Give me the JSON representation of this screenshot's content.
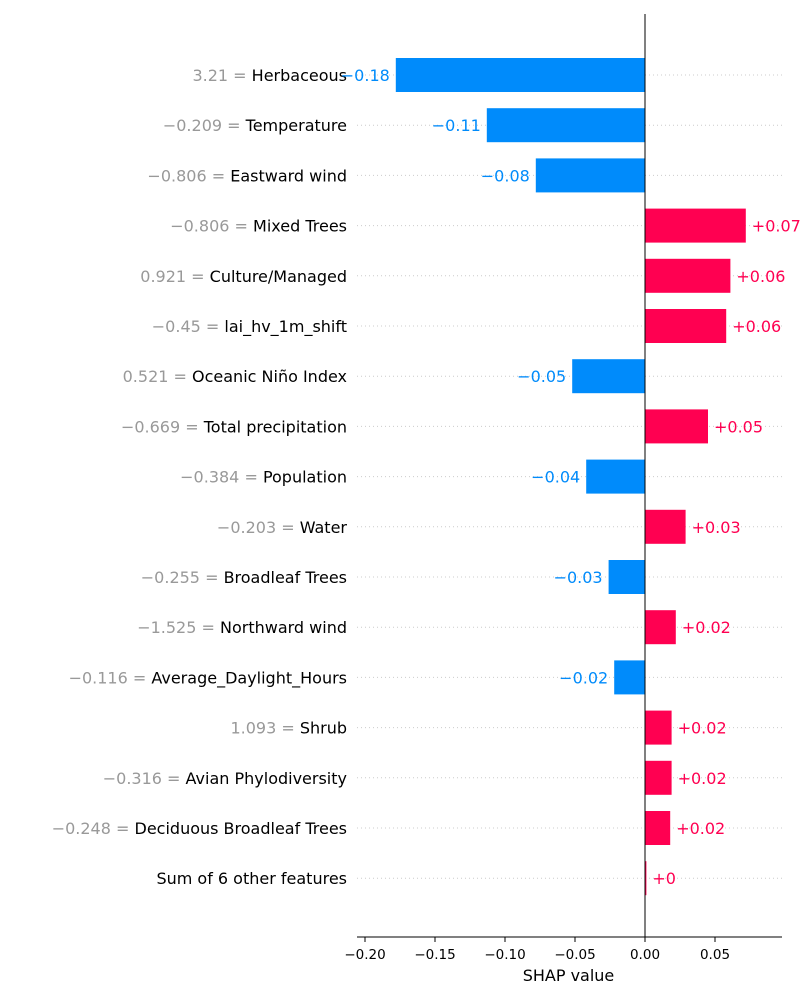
{
  "chart_data": {
    "type": "bar",
    "orientation": "horizontal",
    "xlabel": "SHAP value",
    "xlim": [
      -0.2,
      0.1
    ],
    "xticks": [
      -0.2,
      -0.15,
      -0.1,
      -0.05,
      0.0,
      0.05
    ],
    "xtick_labels": [
      "−0.20",
      "−0.15",
      "−0.10",
      "−0.05",
      "0.00",
      "0.05"
    ],
    "grid": "horizontal dotted row guides",
    "colors": {
      "positive": "#ff0051",
      "negative": "#008bfb",
      "feature_value": "#999999",
      "feature_name": "#000000"
    },
    "features": [
      {
        "value_label": "3.21 = ",
        "name": "Herbaceous",
        "shap": -0.178,
        "shap_label": "−0.18"
      },
      {
        "value_label": "−0.209 = ",
        "name": "Temperature",
        "shap": -0.113,
        "shap_label": "−0.11"
      },
      {
        "value_label": "−0.806 = ",
        "name": "Eastward wind",
        "shap": -0.078,
        "shap_label": "−0.08"
      },
      {
        "value_label": "−0.806 = ",
        "name": "Mixed Trees",
        "shap": 0.072,
        "shap_label": "+0.07"
      },
      {
        "value_label": "0.921 = ",
        "name": "Culture/Managed",
        "shap": 0.061,
        "shap_label": "+0.06"
      },
      {
        "value_label": "−0.45 = ",
        "name": "lai_hv_1m_shift",
        "shap": 0.058,
        "shap_label": "+0.06"
      },
      {
        "value_label": "0.521 = ",
        "name": "Oceanic Niño Index",
        "shap": -0.052,
        "shap_label": "−0.05"
      },
      {
        "value_label": "−0.669 = ",
        "name": "Total precipitation",
        "shap": 0.045,
        "shap_label": "+0.05"
      },
      {
        "value_label": "−0.384 = ",
        "name": "Population",
        "shap": -0.042,
        "shap_label": "−0.04"
      },
      {
        "value_label": "−0.203 = ",
        "name": "Water",
        "shap": 0.029,
        "shap_label": "+0.03"
      },
      {
        "value_label": "−0.255 = ",
        "name": "Broadleaf Trees",
        "shap": -0.026,
        "shap_label": "−0.03"
      },
      {
        "value_label": "−1.525 = ",
        "name": "Northward wind",
        "shap": 0.022,
        "shap_label": "+0.02"
      },
      {
        "value_label": "−0.116 = ",
        "name": "Average_Daylight_Hours",
        "shap": -0.022,
        "shap_label": "−0.02"
      },
      {
        "value_label": "1.093 = ",
        "name": "Shrub",
        "shap": 0.019,
        "shap_label": "+0.02"
      },
      {
        "value_label": "−0.316 = ",
        "name": "Avian Phylodiversity",
        "shap": 0.019,
        "shap_label": "+0.02"
      },
      {
        "value_label": "−0.248 = ",
        "name": "Deciduous Broadleaf Trees",
        "shap": 0.018,
        "shap_label": "+0.02"
      },
      {
        "value_label": "",
        "name": "Sum of 6 other features",
        "shap": 0.001,
        "shap_label": "+0"
      }
    ]
  }
}
